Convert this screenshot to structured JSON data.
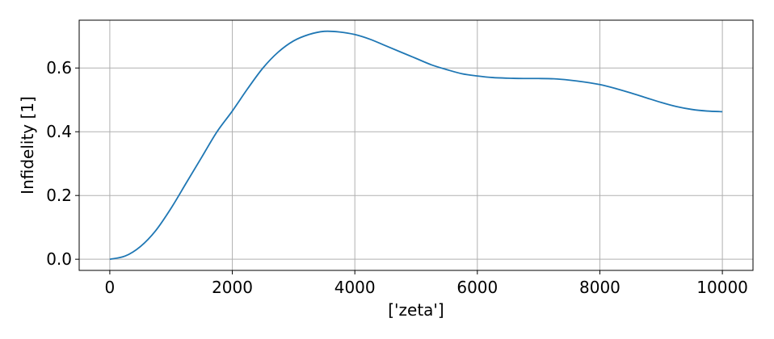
{
  "chart_data": {
    "type": "line",
    "title": "",
    "xlabel": "['zeta']",
    "ylabel": "Infidelity [1]",
    "xlim": [
      -500,
      10500
    ],
    "ylim": [
      -0.035,
      0.75
    ],
    "xticks": [
      0,
      2000,
      4000,
      6000,
      8000,
      10000
    ],
    "xtick_labels": [
      "0",
      "2000",
      "4000",
      "6000",
      "8000",
      "10000"
    ],
    "yticks": [
      0.0,
      0.2,
      0.4,
      0.6
    ],
    "ytick_labels": [
      "0.0",
      "0.2",
      "0.4",
      "0.6"
    ],
    "grid": true,
    "legend": "none",
    "series": [
      {
        "color": "#1f77b4",
        "x": [
          0,
          250,
          500,
          750,
          1000,
          1250,
          1500,
          1750,
          2000,
          2250,
          2500,
          2750,
          3000,
          3250,
          3500,
          3750,
          4000,
          4250,
          4500,
          4750,
          5000,
          5250,
          5500,
          5750,
          6000,
          6250,
          6500,
          6750,
          7000,
          7250,
          7500,
          7750,
          8000,
          8250,
          8500,
          8750,
          9000,
          9250,
          9500,
          9750,
          10000
        ],
        "y": [
          0.0,
          0.01,
          0.04,
          0.09,
          0.16,
          0.24,
          0.32,
          0.4,
          0.465,
          0.535,
          0.6,
          0.65,
          0.685,
          0.705,
          0.715,
          0.713,
          0.705,
          0.69,
          0.67,
          0.65,
          0.63,
          0.61,
          0.595,
          0.582,
          0.575,
          0.57,
          0.568,
          0.567,
          0.567,
          0.566,
          0.562,
          0.556,
          0.548,
          0.536,
          0.522,
          0.507,
          0.492,
          0.479,
          0.47,
          0.465,
          0.463
        ]
      }
    ]
  }
}
